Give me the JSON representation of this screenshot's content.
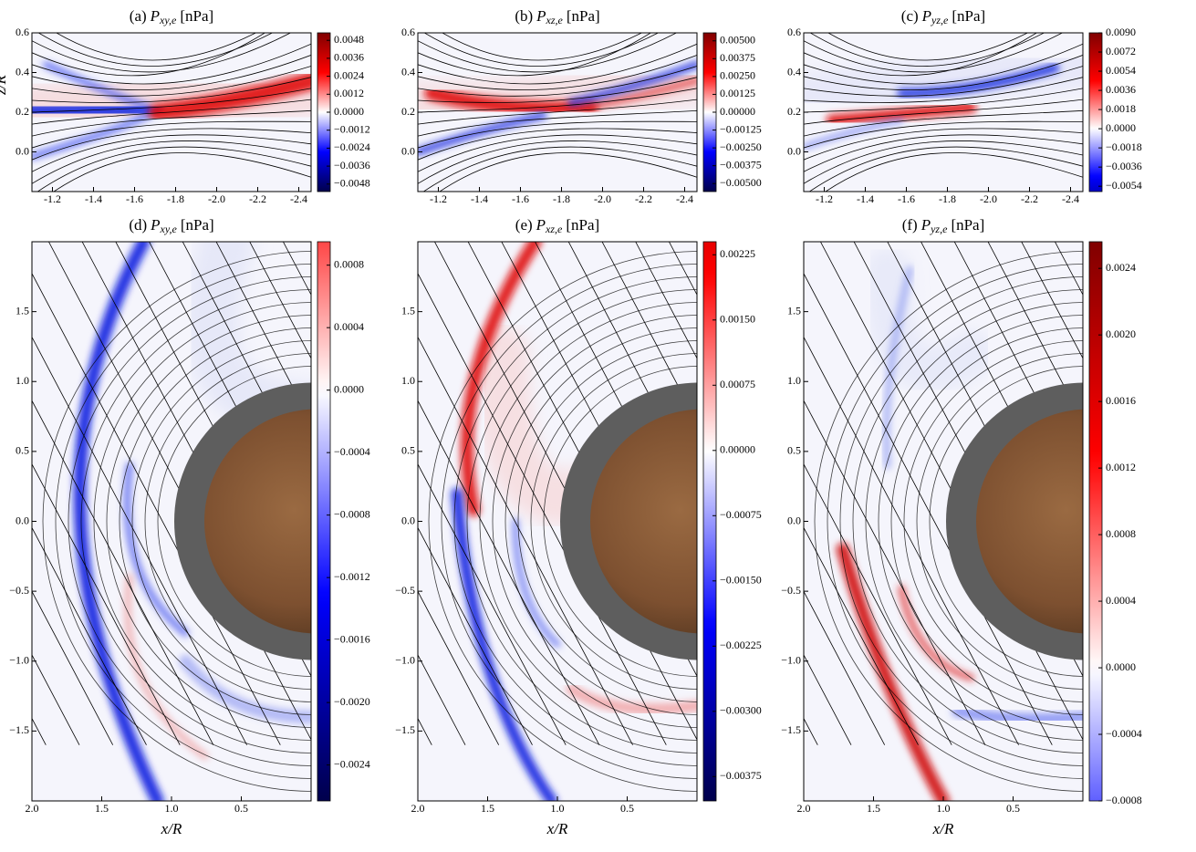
{
  "chart_data": [
    {
      "type": "contour",
      "panel": "(a)",
      "symbol": "P",
      "subscript": "xy,e",
      "unit": "[nPa]",
      "colormap": "seismic",
      "ylabel": "z/R",
      "xlim": [
        -1.1,
        -2.46
      ],
      "xticks": [
        -1.2,
        -1.4,
        -1.6,
        -1.8,
        {
          "value": -2.0,
          "label": "-2.0"
        },
        -2.2,
        -2.4
      ],
      "ylim": [
        -0.2,
        0.6
      ],
      "yticks": [
        {
          "value": 0.0,
          "label": "0.0"
        },
        0.2,
        0.4,
        0.6
      ],
      "clim": [
        -0.0053,
        0.0053
      ],
      "cticks": [
        0.0048,
        0.0036,
        0.0024,
        0.0012,
        {
          "value": 0,
          "label": "0.0000"
        },
        {
          "value": -0.0012,
          "label": "−0.0012"
        },
        {
          "value": -0.0024,
          "label": "−0.0024"
        },
        {
          "value": -0.0036,
          "label": "−0.0036"
        },
        {
          "value": -0.0048,
          "label": "−0.0048"
        }
      ]
    },
    {
      "type": "contour",
      "panel": "(b)",
      "symbol": "P",
      "subscript": "xz,e",
      "unit": "[nPa]",
      "colormap": "seismic",
      "xlim": [
        -1.1,
        -2.46
      ],
      "xticks": [
        -1.2,
        -1.4,
        -1.6,
        -1.8,
        {
          "value": -2.0,
          "label": "-2.0"
        },
        -2.2,
        -2.4
      ],
      "ylim": [
        -0.2,
        0.6
      ],
      "yticks": [
        {
          "value": 0.0,
          "label": "0.0"
        },
        0.2,
        0.4,
        0.6
      ],
      "clim": [
        -0.00556,
        0.00556
      ],
      "cticks": [
        {
          "value": 0.005,
          "label": "0.00500"
        },
        0.00375,
        {
          "value": 0.0025,
          "label": "0.00250"
        },
        0.00125,
        {
          "value": 0,
          "label": "0.00000"
        },
        {
          "value": -0.00125,
          "label": "−0.00125"
        },
        {
          "value": -0.0025,
          "label": "−0.00250"
        },
        {
          "value": -0.00375,
          "label": "−0.00375"
        },
        {
          "value": -0.005,
          "label": "−0.00500"
        }
      ]
    },
    {
      "type": "contour",
      "panel": "(c)",
      "symbol": "P",
      "subscript": "yz,e",
      "unit": "[nPa]",
      "colormap": "seismic",
      "xlim": [
        -1.1,
        -2.46
      ],
      "xticks": [
        -1.2,
        -1.4,
        -1.6,
        -1.8,
        {
          "value": -2.0,
          "label": "-2.0"
        },
        -2.2,
        -2.4
      ],
      "ylim": [
        -0.2,
        0.6
      ],
      "yticks": [
        {
          "value": 0.0,
          "label": "0.0"
        },
        0.2,
        0.4,
        0.6
      ],
      "clim": [
        -0.0059,
        0.009
      ],
      "cticks": [
        {
          "value": 0.009,
          "label": "0.0090"
        },
        0.0072,
        0.0054,
        0.0036,
        0.0018,
        {
          "value": 0,
          "label": "0.0000"
        },
        {
          "value": -0.0018,
          "label": "−0.0018"
        },
        {
          "value": -0.0036,
          "label": "−0.0036"
        },
        {
          "value": -0.0054,
          "label": "−0.0054"
        }
      ]
    },
    {
      "type": "contour",
      "panel": "(d)",
      "symbol": "P",
      "subscript": "xy,e",
      "unit": "[nPa]",
      "colormap": "seismic",
      "xlabel": "x/R",
      "xlim": [
        2.0,
        0.0
      ],
      "xticks": [
        {
          "value": 2.0,
          "label": "2.0"
        },
        1.5,
        {
          "value": 1.0,
          "label": "1.0"
        },
        0.5
      ],
      "ylim": [
        -2.0,
        2.0
      ],
      "yticks": [
        1.5,
        {
          "value": 1.0,
          "label": "1.0"
        },
        0.5,
        {
          "value": 0.0,
          "label": "0.0"
        },
        {
          "value": -0.5,
          "label": "−0.5"
        },
        {
          "value": -1.0,
          "label": "−1.0"
        },
        {
          "value": -1.5,
          "label": "−1.5"
        }
      ],
      "clim": [
        -0.00263,
        0.00095
      ],
      "cticks": [
        0.0008,
        0.0004,
        {
          "value": 0,
          "label": "0.0000"
        },
        {
          "value": -0.0004,
          "label": "−0.0004"
        },
        {
          "value": -0.0008,
          "label": "−0.0008"
        },
        {
          "value": -0.0012,
          "label": "−0.0012"
        },
        {
          "value": -0.0016,
          "label": "−0.0016"
        },
        {
          "value": -0.002,
          "label": "−0.0020"
        },
        {
          "value": -0.0024,
          "label": "−0.0024"
        }
      ]
    },
    {
      "type": "contour",
      "panel": "(e)",
      "symbol": "P",
      "subscript": "xz,e",
      "unit": "[nPa]",
      "colormap": "seismic",
      "xlabel": "x/R",
      "xlim": [
        2.0,
        0.0
      ],
      "xticks": [
        {
          "value": 2.0,
          "label": "2.0"
        },
        1.5,
        {
          "value": 1.0,
          "label": "1.0"
        },
        0.5
      ],
      "ylim": [
        -2.0,
        2.0
      ],
      "yticks": [
        1.5,
        {
          "value": 1.0,
          "label": "1.0"
        },
        0.5,
        {
          "value": 0.0,
          "label": "0.0"
        },
        {
          "value": -0.5,
          "label": "−0.5"
        },
        {
          "value": -1.0,
          "label": "−1.0"
        },
        {
          "value": -1.5,
          "label": "−1.5"
        }
      ],
      "clim": [
        -0.00403,
        0.0024
      ],
      "cticks": [
        0.00225,
        {
          "value": 0.0015,
          "label": "0.00150"
        },
        0.00075,
        {
          "value": 0,
          "label": "0.00000"
        },
        {
          "value": -0.00075,
          "label": "−0.00075"
        },
        {
          "value": -0.0015,
          "label": "−0.00150"
        },
        {
          "value": -0.00225,
          "label": "−0.00225"
        },
        {
          "value": -0.003,
          "label": "−0.00300"
        },
        {
          "value": -0.00375,
          "label": "−0.00375"
        }
      ]
    },
    {
      "type": "contour",
      "panel": "(f)",
      "symbol": "P",
      "subscript": "yz,e",
      "unit": "[nPa]",
      "colormap": "seismic",
      "xlabel": "x/R",
      "xlim": [
        2.0,
        0.0
      ],
      "xticks": [
        {
          "value": 2.0,
          "label": "2.0"
        },
        1.5,
        {
          "value": 1.0,
          "label": "1.0"
        },
        0.5
      ],
      "ylim": [
        -2.0,
        2.0
      ],
      "yticks": [
        1.5,
        {
          "value": 1.0,
          "label": "1.0"
        },
        0.5,
        {
          "value": 0.0,
          "label": "0.0"
        },
        {
          "value": -0.5,
          "label": "−0.5"
        },
        {
          "value": -1.0,
          "label": "−1.0"
        },
        {
          "value": -1.5,
          "label": "−1.5"
        }
      ],
      "clim": [
        -0.0008,
        0.00256
      ],
      "cticks": [
        0.0024,
        {
          "value": 0.002,
          "label": "0.0020"
        },
        0.0016,
        0.0012,
        0.0008,
        0.0004,
        {
          "value": 0,
          "label": "0.0000"
        },
        {
          "value": -0.0004,
          "label": "−0.0004"
        },
        {
          "value": -0.0008,
          "label": "−0.0008"
        }
      ]
    }
  ]
}
